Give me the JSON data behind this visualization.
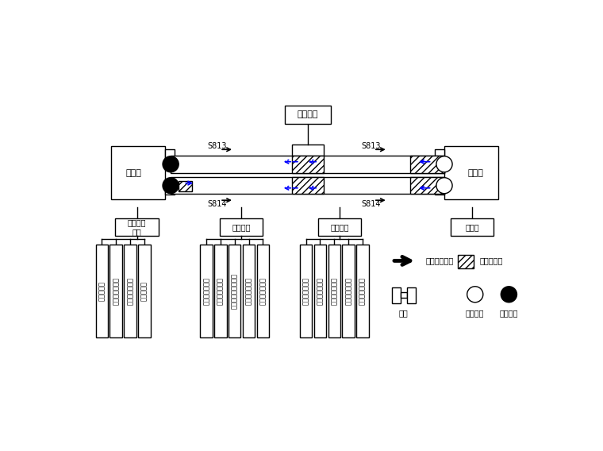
{
  "bg_color": "#ffffff",
  "station_left_label": "镇龙站",
  "station_right_label": "中新站",
  "shaft_label": "施工竖井",
  "zone_mingwa": "明挖车站\n工区",
  "zone_shield": "盾构工区",
  "zone_mine": "矿山工区",
  "zone_right": "中新站",
  "s813": "S813",
  "s814": "S814",
  "left_teams": [
    "土方作业队",
    "围护结构作业队",
    "防水施工作业队",
    "结构作业队"
  ],
  "shield_teams": [
    "盾构施工作业队",
    "盾构配合作业队",
    "中间竖井施工作业队",
    "盾构施工作业队",
    "盾构配合作业队"
  ],
  "mine_teams": [
    "矿山施工作业队",
    "矿山配合作业队",
    "施工竖井作业队",
    "矿山施工作业队",
    "矿山配合作业队"
  ],
  "legend_shield_dir": "盾构掘进方向",
  "legend_mine_tunnel": "矿山法隧道",
  "legend_station": "车站",
  "legend_recv": "盾构接收",
  "legend_launch": "盾构始发"
}
